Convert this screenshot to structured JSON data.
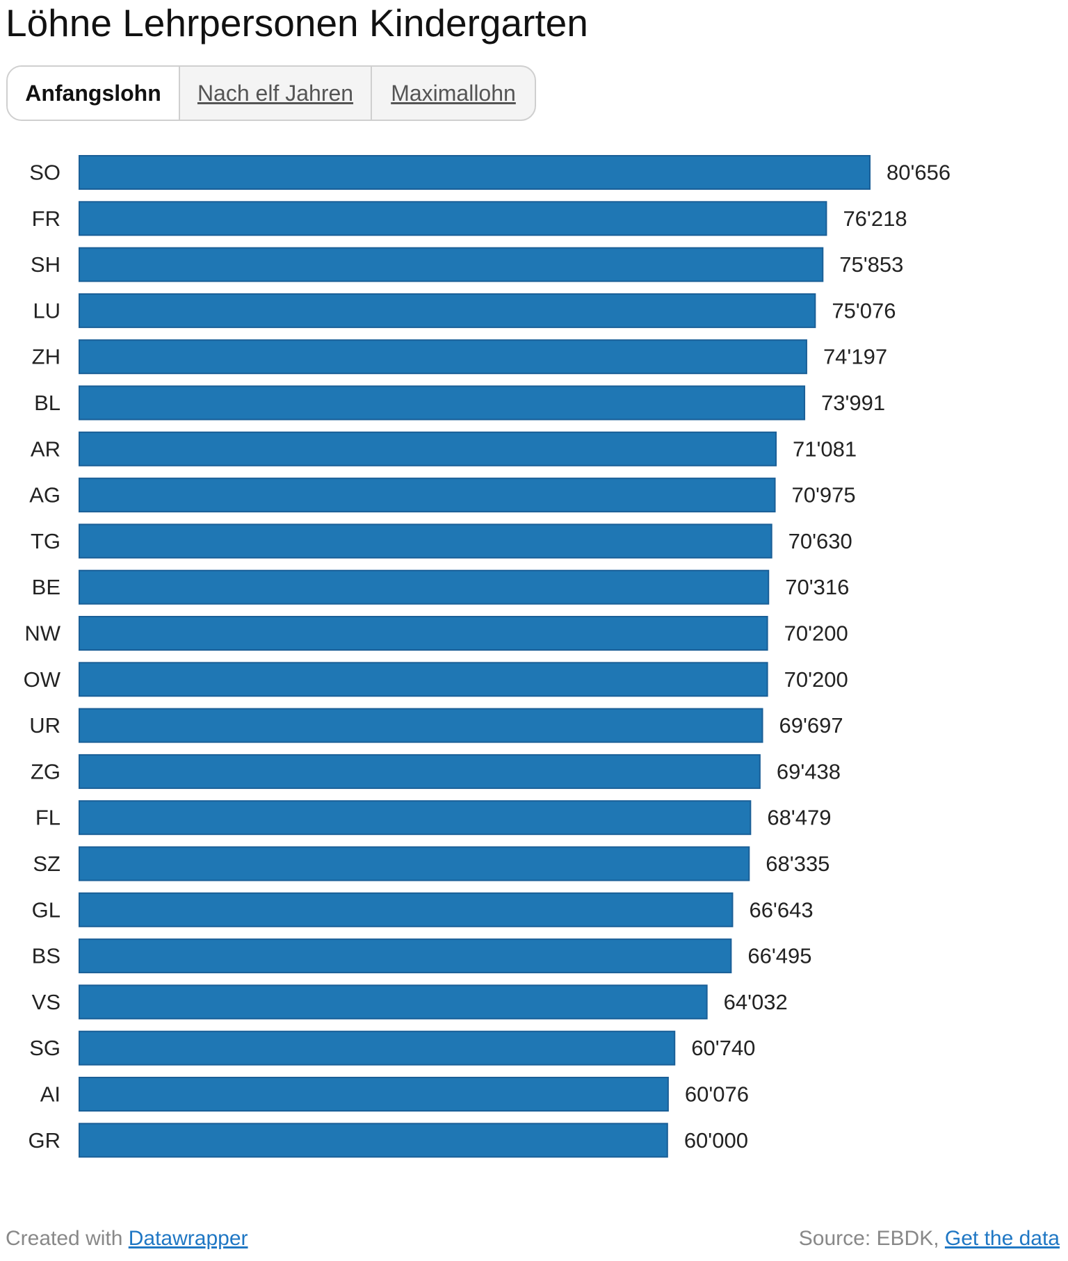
{
  "title": "Löhne Lehrpersonen Kindergarten",
  "tabs": [
    {
      "label": "Anfangslohn",
      "active": true
    },
    {
      "label": "Nach elf Jahren",
      "active": false
    },
    {
      "label": "Maximallohn",
      "active": false
    }
  ],
  "colors": {
    "bar": "#1f77b4",
    "bar_border": "#1a5f97",
    "link": "#1f77c4"
  },
  "chart_data": {
    "type": "bar",
    "orientation": "horizontal",
    "categories": [
      "SO",
      "FR",
      "SH",
      "LU",
      "ZH",
      "BL",
      "AR",
      "AG",
      "TG",
      "BE",
      "NW",
      "OW",
      "UR",
      "ZG",
      "FL",
      "SZ",
      "GL",
      "BS",
      "VS",
      "SG",
      "AI",
      "GR"
    ],
    "values": [
      80656,
      76218,
      75853,
      75076,
      74197,
      73991,
      71081,
      70975,
      70630,
      70316,
      70200,
      70200,
      69697,
      69438,
      68479,
      68335,
      66643,
      66495,
      64032,
      60740,
      60076,
      60000
    ],
    "value_labels": [
      "80'656",
      "76'218",
      "75'853",
      "75'076",
      "74'197",
      "73'991",
      "71'081",
      "70'975",
      "70'630",
      "70'316",
      "70'200",
      "70'200",
      "69'697",
      "69'438",
      "68'479",
      "68'335",
      "66'643",
      "66'495",
      "64'032",
      "60'740",
      "60'076",
      "60'000"
    ],
    "xlim": [
      0,
      80656
    ],
    "grid": false,
    "legend": "none"
  },
  "footer": {
    "created_prefix": "Created with ",
    "created_link": "Datawrapper",
    "source_prefix": "Source: EBDK, ",
    "source_link": "Get the data"
  }
}
